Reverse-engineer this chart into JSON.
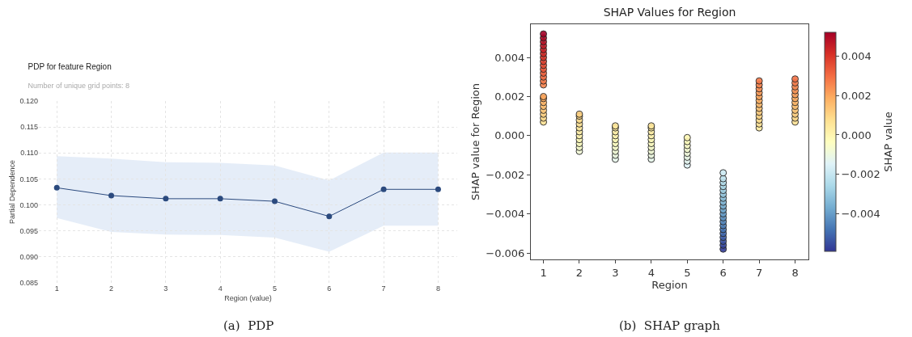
{
  "chart_data": [
    {
      "type": "line",
      "title": "PDP for feature Region",
      "subtitle": "Number of unique grid points: 8",
      "xlabel": "Region (value)",
      "ylabel": "Partial Dependence",
      "x": [
        1,
        2,
        3,
        4,
        5,
        6,
        7,
        8
      ],
      "series": [
        {
          "color": "#2b4a7e",
          "values": [
            0.1033,
            0.1018,
            0.1012,
            0.1012,
            0.1007,
            0.0978,
            0.103,
            0.103
          ],
          "lower": [
            0.0975,
            0.0948,
            0.0943,
            0.0942,
            0.0937,
            0.091,
            0.096,
            0.096
          ],
          "upper": [
            0.1094,
            0.1089,
            0.1082,
            0.1081,
            0.1076,
            0.1047,
            0.1101,
            0.1101
          ]
        }
      ],
      "xlim": [
        0.67,
        8.35
      ],
      "xticks": [
        1,
        2,
        3,
        4,
        5,
        6,
        7,
        8
      ],
      "ylim": [
        0.085,
        0.12
      ],
      "yticks": [
        {
          "value": 0.085,
          "label": "0.085"
        },
        {
          "value": 0.09,
          "label": "0.090"
        },
        {
          "value": 0.095,
          "label": "0.095"
        },
        {
          "value": 0.1,
          "label": "0.100"
        },
        {
          "value": 0.105,
          "label": "0.105"
        },
        {
          "value": 0.11,
          "label": "0.110"
        },
        {
          "value": 0.115,
          "label": "0.115"
        },
        {
          "value": 0.12,
          "label": "0.120"
        }
      ],
      "grid": true,
      "marker": "circle",
      "annotations": [
        "(a)  PDP"
      ]
    },
    {
      "type": "scatter",
      "title": "SHAP Values for Region",
      "xlabel": "Region",
      "ylabel": "SHAP value for Region",
      "clabel": "SHAP value",
      "x": [
        1,
        1,
        1,
        1,
        1,
        1,
        1,
        1,
        1,
        1,
        1,
        1,
        1,
        1,
        1,
        1,
        1,
        1,
        1,
        1,
        1,
        1,
        2,
        2,
        2,
        2,
        2,
        2,
        2,
        2,
        2,
        2,
        2,
        3,
        3,
        3,
        3,
        3,
        3,
        3,
        3,
        3,
        3,
        4,
        4,
        4,
        4,
        4,
        4,
        4,
        4,
        4,
        4,
        5,
        5,
        5,
        5,
        5,
        5,
        5,
        5,
        6,
        6,
        6,
        6,
        6,
        6,
        6,
        6,
        6,
        6,
        6,
        6,
        6,
        6,
        6,
        6,
        6,
        6,
        6,
        6,
        7,
        7,
        7,
        7,
        7,
        7,
        7,
        7,
        7,
        7,
        7,
        7,
        7,
        8,
        8,
        8,
        8,
        8,
        8,
        8,
        8,
        8,
        8,
        8,
        8
      ],
      "values": [
        0.0007,
        0.0009,
        0.0011,
        0.0013,
        0.0015,
        0.0017,
        0.0019,
        0.002,
        0.0026,
        0.0028,
        0.003,
        0.0032,
        0.0034,
        0.0036,
        0.0038,
        0.004,
        0.0042,
        0.0044,
        0.0046,
        0.0048,
        0.005,
        0.0052,
        -0.0008,
        -0.0006,
        -0.0004,
        -0.0002,
        0,
        0.0002,
        0.0004,
        0.0006,
        0.0008,
        0.001,
        0.0011,
        -0.0012,
        -0.001,
        -0.0008,
        -0.0006,
        -0.0004,
        -0.0002,
        0,
        0.0002,
        0.0004,
        0.0005,
        -0.0012,
        -0.001,
        -0.0008,
        -0.0006,
        -0.0004,
        -0.0002,
        0,
        0.0002,
        0.0004,
        0.0005,
        -0.0015,
        -0.0013,
        -0.0011,
        -0.0009,
        -0.0007,
        -0.0005,
        -0.0003,
        -0.0001,
        -0.0058,
        -0.0056,
        -0.0054,
        -0.0052,
        -0.005,
        -0.0048,
        -0.0046,
        -0.0044,
        -0.0042,
        -0.004,
        -0.0038,
        -0.0036,
        -0.0034,
        -0.0032,
        -0.003,
        -0.0028,
        -0.0026,
        -0.0024,
        -0.0022,
        -0.0019,
        0.0004,
        0.0006,
        0.0008,
        0.001,
        0.0012,
        0.0014,
        0.0016,
        0.0018,
        0.002,
        0.0022,
        0.0024,
        0.0026,
        0.0028,
        0.0007,
        0.0009,
        0.0011,
        0.0013,
        0.0015,
        0.0017,
        0.0019,
        0.0021,
        0.0023,
        0.0025,
        0.0027,
        0.0029
      ],
      "cvalues": [
        0.0007,
        0.0009,
        0.0011,
        0.0013,
        0.0015,
        0.0017,
        0.0019,
        0.002,
        0.0026,
        0.0028,
        0.003,
        0.0032,
        0.0034,
        0.0036,
        0.0038,
        0.004,
        0.0042,
        0.0044,
        0.0046,
        0.0048,
        0.005,
        0.0052,
        -0.0008,
        -0.0006,
        -0.0004,
        -0.0002,
        0,
        0.0002,
        0.0004,
        0.0006,
        0.0008,
        0.001,
        0.0011,
        -0.0012,
        -0.001,
        -0.0008,
        -0.0006,
        -0.0004,
        -0.0002,
        0,
        0.0002,
        0.0004,
        0.0005,
        -0.0012,
        -0.001,
        -0.0008,
        -0.0006,
        -0.0004,
        -0.0002,
        0,
        0.0002,
        0.0004,
        0.0005,
        -0.0015,
        -0.0013,
        -0.0011,
        -0.0009,
        -0.0007,
        -0.0005,
        -0.0003,
        -0.0001,
        -0.0058,
        -0.0056,
        -0.0054,
        -0.0052,
        -0.005,
        -0.0048,
        -0.0046,
        -0.0044,
        -0.0042,
        -0.004,
        -0.0038,
        -0.0036,
        -0.0034,
        -0.0032,
        -0.003,
        -0.0028,
        -0.0026,
        -0.0024,
        -0.0022,
        -0.0019,
        0.0004,
        0.0006,
        0.0008,
        0.001,
        0.0012,
        0.0014,
        0.0016,
        0.0018,
        0.002,
        0.0022,
        0.0024,
        0.0026,
        0.0028,
        0.0007,
        0.0009,
        0.0011,
        0.0013,
        0.0015,
        0.0017,
        0.0019,
        0.0021,
        0.0023,
        0.0025,
        0.0027,
        0.0029
      ],
      "xlim": [
        0.65,
        8.37
      ],
      "xticks": [
        1,
        2,
        3,
        4,
        5,
        6,
        7,
        8
      ],
      "ylim": [
        -0.00633,
        0.0057
      ],
      "yticks": [
        {
          "value": -0.006,
          "label": "−0.006"
        },
        {
          "value": -0.004,
          "label": "−0.004"
        },
        {
          "value": -0.002,
          "label": "−0.002"
        },
        {
          "value": 0,
          "label": "0.000"
        },
        {
          "value": 0.002,
          "label": "0.002"
        },
        {
          "value": 0.004,
          "label": "0.004"
        }
      ],
      "clim": [
        -0.0059,
        0.0052
      ],
      "cticks": [
        {
          "value": -0.004,
          "label": "−0.004"
        },
        {
          "value": -0.002,
          "label": "−0.002"
        },
        {
          "value": 0,
          "label": "0.000"
        },
        {
          "value": 0.002,
          "label": "0.002"
        },
        {
          "value": 0.004,
          "label": "0.004"
        }
      ],
      "grid": false,
      "marker": "circle",
      "annotations": [
        "(b)  SHAP graph"
      ]
    }
  ]
}
